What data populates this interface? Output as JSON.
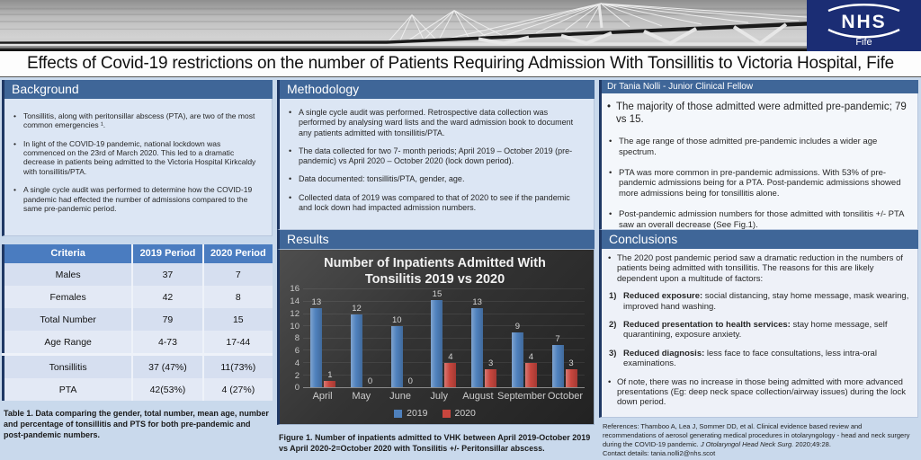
{
  "banner": {
    "nhs_logo": {
      "line1": "NHS",
      "line2": "Fife"
    },
    "colors": {
      "logo_bg": "#1b2d74"
    }
  },
  "title": "Effects of Covid-19 restrictions on the number of Patients Requiring Admission With Tonsillitis to Victoria Hospital, Fife",
  "background": {
    "header": "Background",
    "bullets": [
      "Tonsillitis, along with peritonsillar abscess (PTA), are two of the most common emergencies ¹.",
      "In light of the COVID-19 pandemic, national lockdown was commenced on the 23rd of March 2020. This led to a dramatic decrease in patients being admitted to the Victoria Hospital Kirkcaldy with tonsillitis/PTA.",
      "A single cycle audit was performed to determine how the COVID-19 pandemic had effected the number of admissions compared to the same pre-pandemic period."
    ]
  },
  "methodology": {
    "header": "Methodology",
    "bullets": [
      "A single cycle audit was performed. Retrospective data collection was performed by analysing ward lists and the ward admission book to document any patients admitted with tonsillitis/PTA.",
      "The data collected for two 7- month periods; April 2019 – October 2019 (pre-pandemic) vs April 2020 – October 2020 (lock down period).",
      "Data documented: tonsillitis/PTA, gender, age.",
      "Collected data of 2019 was compared to that of 2020 to see if the pandemic and lock down had impacted admission numbers."
    ]
  },
  "author_panel": {
    "header": "Dr Tania Nolli  - Junior Clinical Fellow",
    "bullets": [
      "The majority of those admitted were admitted pre-pandemic; 79 vs 15.",
      "The age range of those admitted pre-pandemic includes a wider age spectrum.",
      "PTA was more common in pre-pandemic admissions. With 53% of pre-pandemic admissions being for a PTA. Post-pandemic admissions showed more admissions being for tonsillitis alone.",
      "Post-pandemic admission numbers for those admitted with tonsilitis +/- PTA saw an overall decrease (See Fig.1)."
    ]
  },
  "results": {
    "header": "Results"
  },
  "chart_data": {
    "type": "bar",
    "title": "Number of Inpatients Admitted  With Tonsilitis 2019 vs 2020",
    "categories": [
      "April",
      "May",
      "June",
      "July",
      "August",
      "September",
      "October"
    ],
    "series": [
      {
        "name": "2019",
        "color": "#4f81bd",
        "values": [
          13,
          12,
          10,
          15,
          13,
          9,
          7
        ]
      },
      {
        "name": "2020",
        "color": "#c8463e",
        "values": [
          1,
          0,
          0,
          4,
          3,
          4,
          3
        ]
      }
    ],
    "xlabel": "",
    "ylabel": "",
    "ylim": [
      0,
      16
    ],
    "yticks": [
      0,
      2,
      4,
      6,
      8,
      10,
      12,
      14,
      16
    ],
    "grid": true,
    "legend_position": "bottom"
  },
  "figure_caption": "Figure 1.  Number of inpatients admitted to VHK between April 2019-October 2019 vs April 2020-2=October 2020 with Tonsilitis +/- Peritonsillar abscess.",
  "table": {
    "headers": [
      "Criteria",
      "2019 Period",
      "2020 Period"
    ],
    "rows": [
      [
        "Males",
        "37",
        "7"
      ],
      [
        "Females",
        "42",
        "8"
      ],
      [
        "Total Number",
        "79",
        "15"
      ],
      [
        "Age Range",
        "4-73",
        "17-44"
      ],
      [
        "Tonsillitis",
        "37 (47%)",
        "11(73%)"
      ],
      [
        "PTA",
        "42(53%)",
        "4 (27%)"
      ]
    ],
    "caption": "Table 1. Data comparing the gender, total number, mean age, number and percentage of tonsillitis and PTS for both pre-pandemic and post-pandemic numbers."
  },
  "conclusions": {
    "header": "Conclusions",
    "intro": "The 2020 post pandemic period saw a dramatic reduction in the numbers of patients being admitted with tonsillitis. The reasons for this are likely dependent upon a multitude of factors:",
    "numbered": [
      {
        "n": "1)",
        "bold": "Reduced exposure:",
        "text": " social distancing, stay home message, mask wearing, improved hand washing."
      },
      {
        "n": "2)",
        "bold": "Reduced presentation to health services:",
        "text": " stay home message, self quarantining, exposure anxiety."
      },
      {
        "n": "3)",
        "bold": "Reduced diagnosis:",
        "text": " less face to face consultations, less intra-oral examinations."
      }
    ],
    "final": "Of note, there was no increase in those being admitted with more advanced presentations (Eg: deep neck space collection/airway issues) during the lock down period."
  },
  "references": {
    "part1": "References: Thamboo A, Lea J, Sommer DD, et al. Clinical evidence based review and recommendations of aerosol generating medical procedures in otolaryngology - head and neck surgery during the COVID-19 pandemic. ",
    "italic": "J Otolaryngol Head Neck Surg.",
    "part2": " 2020;49:28.",
    "contact": "Contact details: tania.nolli2@nhs.scot"
  }
}
